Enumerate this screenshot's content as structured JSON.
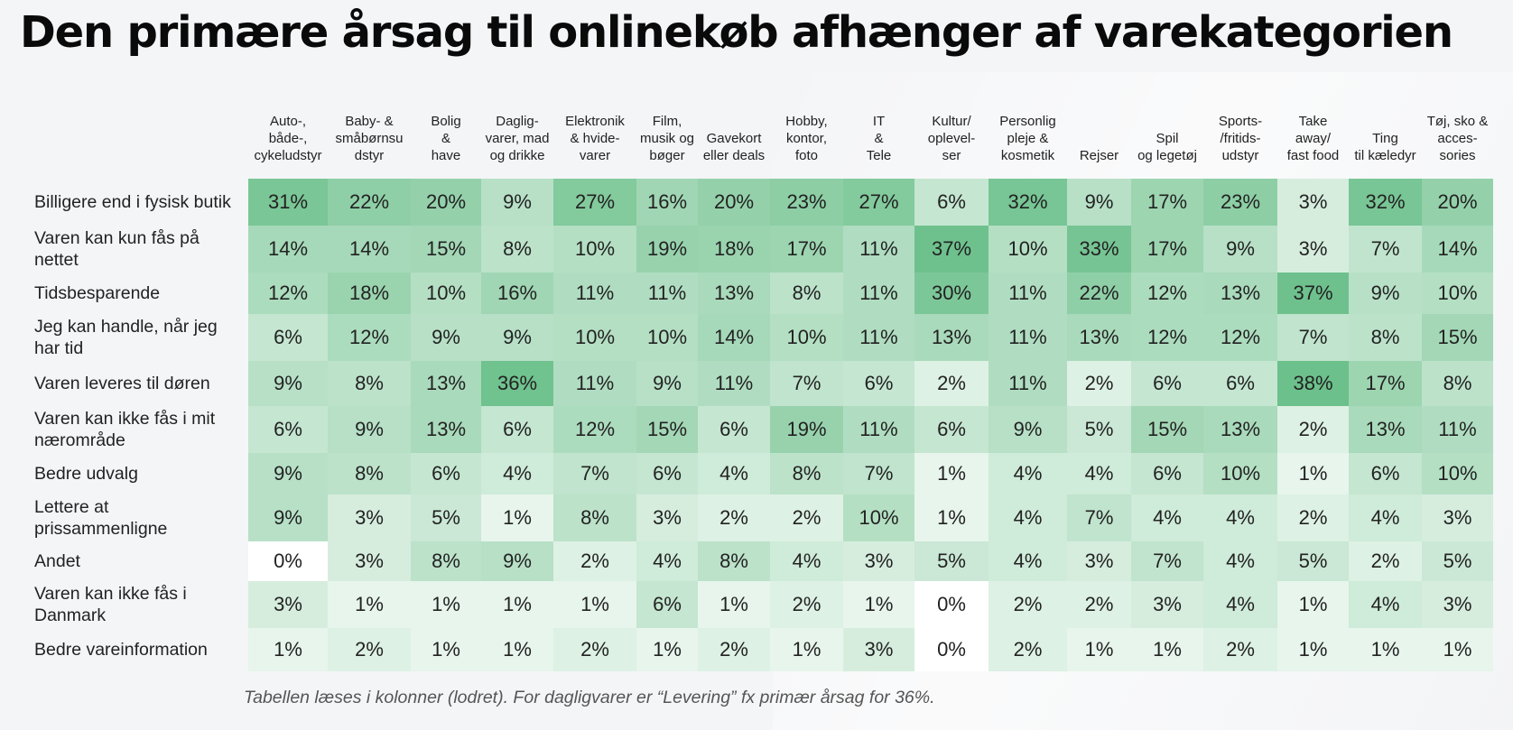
{
  "title": "Den primære årsag til onlinekøb afhænger af varekategorien",
  "footnote": "Tabellen læses i kolonner (lodret). For dagligvarer er “Levering” fx primær årsag for 36%.",
  "colors": {
    "low": "#ffffff",
    "high": "#6cc08b"
  },
  "chart_data": {
    "type": "heatmap",
    "title": "Den primære årsag til onlinekøb afhænger af varekategorien",
    "value_suffix": "%",
    "columns": [
      "Auto-,\nbåde-,\ncykeludstyr",
      "Baby- &\nsmåbørnsu\ndstyr",
      "Bolig\n&\nhave",
      "Daglig-\nvarer, mad\nog drikke",
      "Elektronik\n& hvide-\nvarer",
      "Film,\nmusik og\nbøger",
      "Gavekort\neller deals",
      "Hobby,\nkontor,\nfoto",
      "IT\n&\nTele",
      "Kultur/\noplevel-\nser",
      "Personlig\npleje &\nkosmetik",
      "Rejser",
      "Spil\nog legetøj",
      "Sports-\n/fritids-\nudstyr",
      "Take\naway/\nfast food",
      "Ting\ntil kæledyr",
      "Tøj, sko &\nacces-\nsories"
    ],
    "rows": [
      {
        "label": "Billigere end i fysisk butik",
        "values": [
          31,
          22,
          20,
          9,
          27,
          16,
          20,
          23,
          27,
          6,
          32,
          9,
          17,
          23,
          3,
          32,
          20
        ]
      },
      {
        "label": "Varen kan kun fås på nettet",
        "values": [
          14,
          14,
          15,
          8,
          10,
          19,
          18,
          17,
          11,
          37,
          10,
          33,
          17,
          9,
          3,
          7,
          14
        ]
      },
      {
        "label": "Tidsbesparende",
        "values": [
          12,
          18,
          10,
          16,
          11,
          11,
          13,
          8,
          11,
          30,
          11,
          22,
          12,
          13,
          37,
          9,
          10
        ]
      },
      {
        "label": "Jeg kan handle, når jeg har tid",
        "values": [
          6,
          12,
          9,
          9,
          10,
          10,
          14,
          10,
          11,
          13,
          11,
          13,
          12,
          12,
          7,
          8,
          15
        ]
      },
      {
        "label": "Varen leveres til døren",
        "values": [
          9,
          8,
          13,
          36,
          11,
          9,
          11,
          7,
          6,
          2,
          11,
          2,
          6,
          6,
          38,
          17,
          8
        ]
      },
      {
        "label": "Varen kan ikke fås i mit nærområde",
        "values": [
          6,
          9,
          13,
          6,
          12,
          15,
          6,
          19,
          11,
          6,
          9,
          5,
          15,
          13,
          2,
          13,
          11
        ]
      },
      {
        "label": "Bedre udvalg",
        "values": [
          9,
          8,
          6,
          4,
          7,
          6,
          4,
          8,
          7,
          1,
          4,
          4,
          6,
          10,
          1,
          6,
          10
        ]
      },
      {
        "label": "Lettere at prissammenligne",
        "values": [
          9,
          3,
          5,
          1,
          8,
          3,
          2,
          2,
          10,
          1,
          4,
          7,
          4,
          4,
          2,
          4,
          3
        ]
      },
      {
        "label": "Andet",
        "values": [
          0,
          3,
          8,
          9,
          2,
          4,
          8,
          4,
          3,
          5,
          4,
          3,
          7,
          4,
          5,
          2,
          5
        ]
      },
      {
        "label": "Varen kan ikke fås i Danmark",
        "values": [
          3,
          1,
          1,
          1,
          1,
          6,
          1,
          2,
          1,
          0,
          2,
          2,
          3,
          4,
          1,
          4,
          3
        ]
      },
      {
        "label": "Bedre vareinformation",
        "values": [
          1,
          2,
          1,
          1,
          2,
          1,
          2,
          1,
          3,
          0,
          2,
          1,
          1,
          2,
          1,
          1,
          1
        ]
      }
    ]
  }
}
